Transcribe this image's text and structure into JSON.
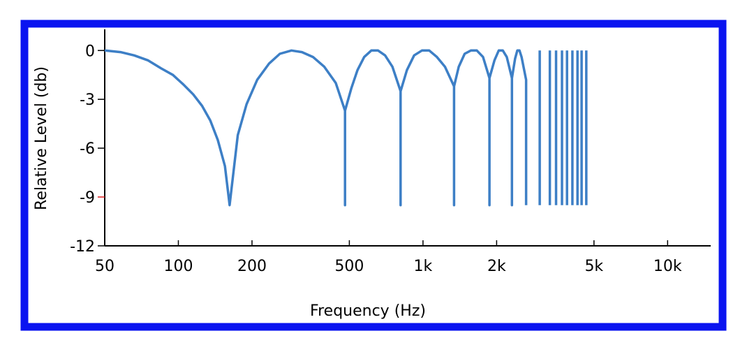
{
  "chart_data": {
    "type": "line",
    "title": "",
    "xlabel": "Frequency (Hz)",
    "ylabel": "Relative Level (db)",
    "x_scale": "log",
    "xlim": [
      50,
      15000
    ],
    "ylim": [
      -12,
      1.3
    ],
    "x_ticks": [
      50,
      100,
      200,
      500,
      1000,
      2000,
      5000,
      10000
    ],
    "x_tick_labels": [
      "50",
      "100",
      "200",
      "500",
      "1k",
      "2k",
      "5k",
      "10k"
    ],
    "y_ticks": [
      0,
      -3,
      -6,
      -9,
      -12
    ],
    "y_tick_labels": [
      "0",
      "-3",
      "-6",
      "-9",
      "-12"
    ],
    "highlight_tick": "-9",
    "grid": false,
    "legend": "none",
    "colors": {
      "border": "#0a14f0",
      "line": "#3d7fc6",
      "axis": "#000000",
      "highlight_tick": "#e02020"
    },
    "series": [
      {
        "values": [
          [
            50,
            0.0
          ],
          [
            58,
            -0.1
          ],
          [
            66,
            -0.3
          ],
          [
            75,
            -0.6
          ],
          [
            85,
            -1.1
          ],
          [
            95,
            -1.5
          ],
          [
            105,
            -2.1
          ],
          [
            115,
            -2.7
          ],
          [
            125,
            -3.4
          ],
          [
            135,
            -4.3
          ],
          [
            145,
            -5.5
          ],
          [
            155,
            -7.1
          ],
          [
            162,
            -9.5
          ],
          [
            175,
            -5.2
          ],
          [
            190,
            -3.3
          ],
          [
            210,
            -1.8
          ],
          [
            235,
            -0.8
          ],
          [
            260,
            -0.2
          ],
          [
            290,
            0.0
          ],
          [
            320,
            -0.1
          ],
          [
            355,
            -0.4
          ],
          [
            395,
            -1.0
          ],
          [
            440,
            -2.0
          ],
          [
            480,
            -3.7
          ],
          [
            480,
            -9.5
          ],
          [
            480,
            -3.7
          ],
          [
            510,
            -2.3
          ],
          [
            540,
            -1.2
          ],
          [
            575,
            -0.4
          ],
          [
            615,
            0.0
          ],
          [
            655,
            0.0
          ],
          [
            700,
            -0.3
          ],
          [
            750,
            -1.0
          ],
          [
            810,
            -2.5
          ],
          [
            810,
            -9.5
          ],
          [
            810,
            -2.5
          ],
          [
            860,
            -1.2
          ],
          [
            920,
            -0.3
          ],
          [
            990,
            0.0
          ],
          [
            1060,
            0.0
          ],
          [
            1140,
            -0.4
          ],
          [
            1230,
            -1.0
          ],
          [
            1340,
            -2.2
          ],
          [
            1340,
            -9.5
          ],
          [
            1340,
            -2.2
          ],
          [
            1400,
            -1.0
          ],
          [
            1480,
            -0.2
          ],
          [
            1570,
            0.0
          ],
          [
            1660,
            0.0
          ],
          [
            1760,
            -0.4
          ],
          [
            1870,
            -1.7
          ],
          [
            1870,
            -9.5
          ],
          [
            1870,
            -1.7
          ],
          [
            1960,
            -0.6
          ],
          [
            2040,
            0.0
          ],
          [
            2120,
            0.0
          ],
          [
            2200,
            -0.4
          ],
          [
            2310,
            -1.7
          ],
          [
            2310,
            -9.5
          ],
          [
            2310,
            -1.7
          ],
          [
            2380,
            -0.5
          ],
          [
            2430,
            0.0
          ],
          [
            2480,
            0.0
          ],
          [
            2530,
            -0.4
          ],
          [
            2640,
            -1.8
          ],
          [
            2640,
            -9.5
          ]
        ]
      },
      {
        "values": [
          [
            3000,
            0
          ],
          [
            3000,
            -9.5
          ]
        ]
      },
      {
        "values": [
          [
            3300,
            0
          ],
          [
            3300,
            -9.5
          ]
        ]
      },
      {
        "values": [
          [
            3500,
            0
          ],
          [
            3500,
            -9.5
          ]
        ]
      },
      {
        "values": [
          [
            3700,
            0
          ],
          [
            3700,
            -9.5
          ]
        ]
      },
      {
        "values": [
          [
            3880,
            0
          ],
          [
            3880,
            -9.5
          ]
        ]
      },
      {
        "values": [
          [
            4080,
            0
          ],
          [
            4080,
            -9.5
          ]
        ]
      },
      {
        "values": [
          [
            4280,
            0
          ],
          [
            4280,
            -9.5
          ]
        ]
      },
      {
        "values": [
          [
            4450,
            0
          ],
          [
            4450,
            -9.5
          ]
        ]
      },
      {
        "values": [
          [
            4650,
            0
          ],
          [
            4650,
            -9.5
          ]
        ]
      }
    ]
  }
}
